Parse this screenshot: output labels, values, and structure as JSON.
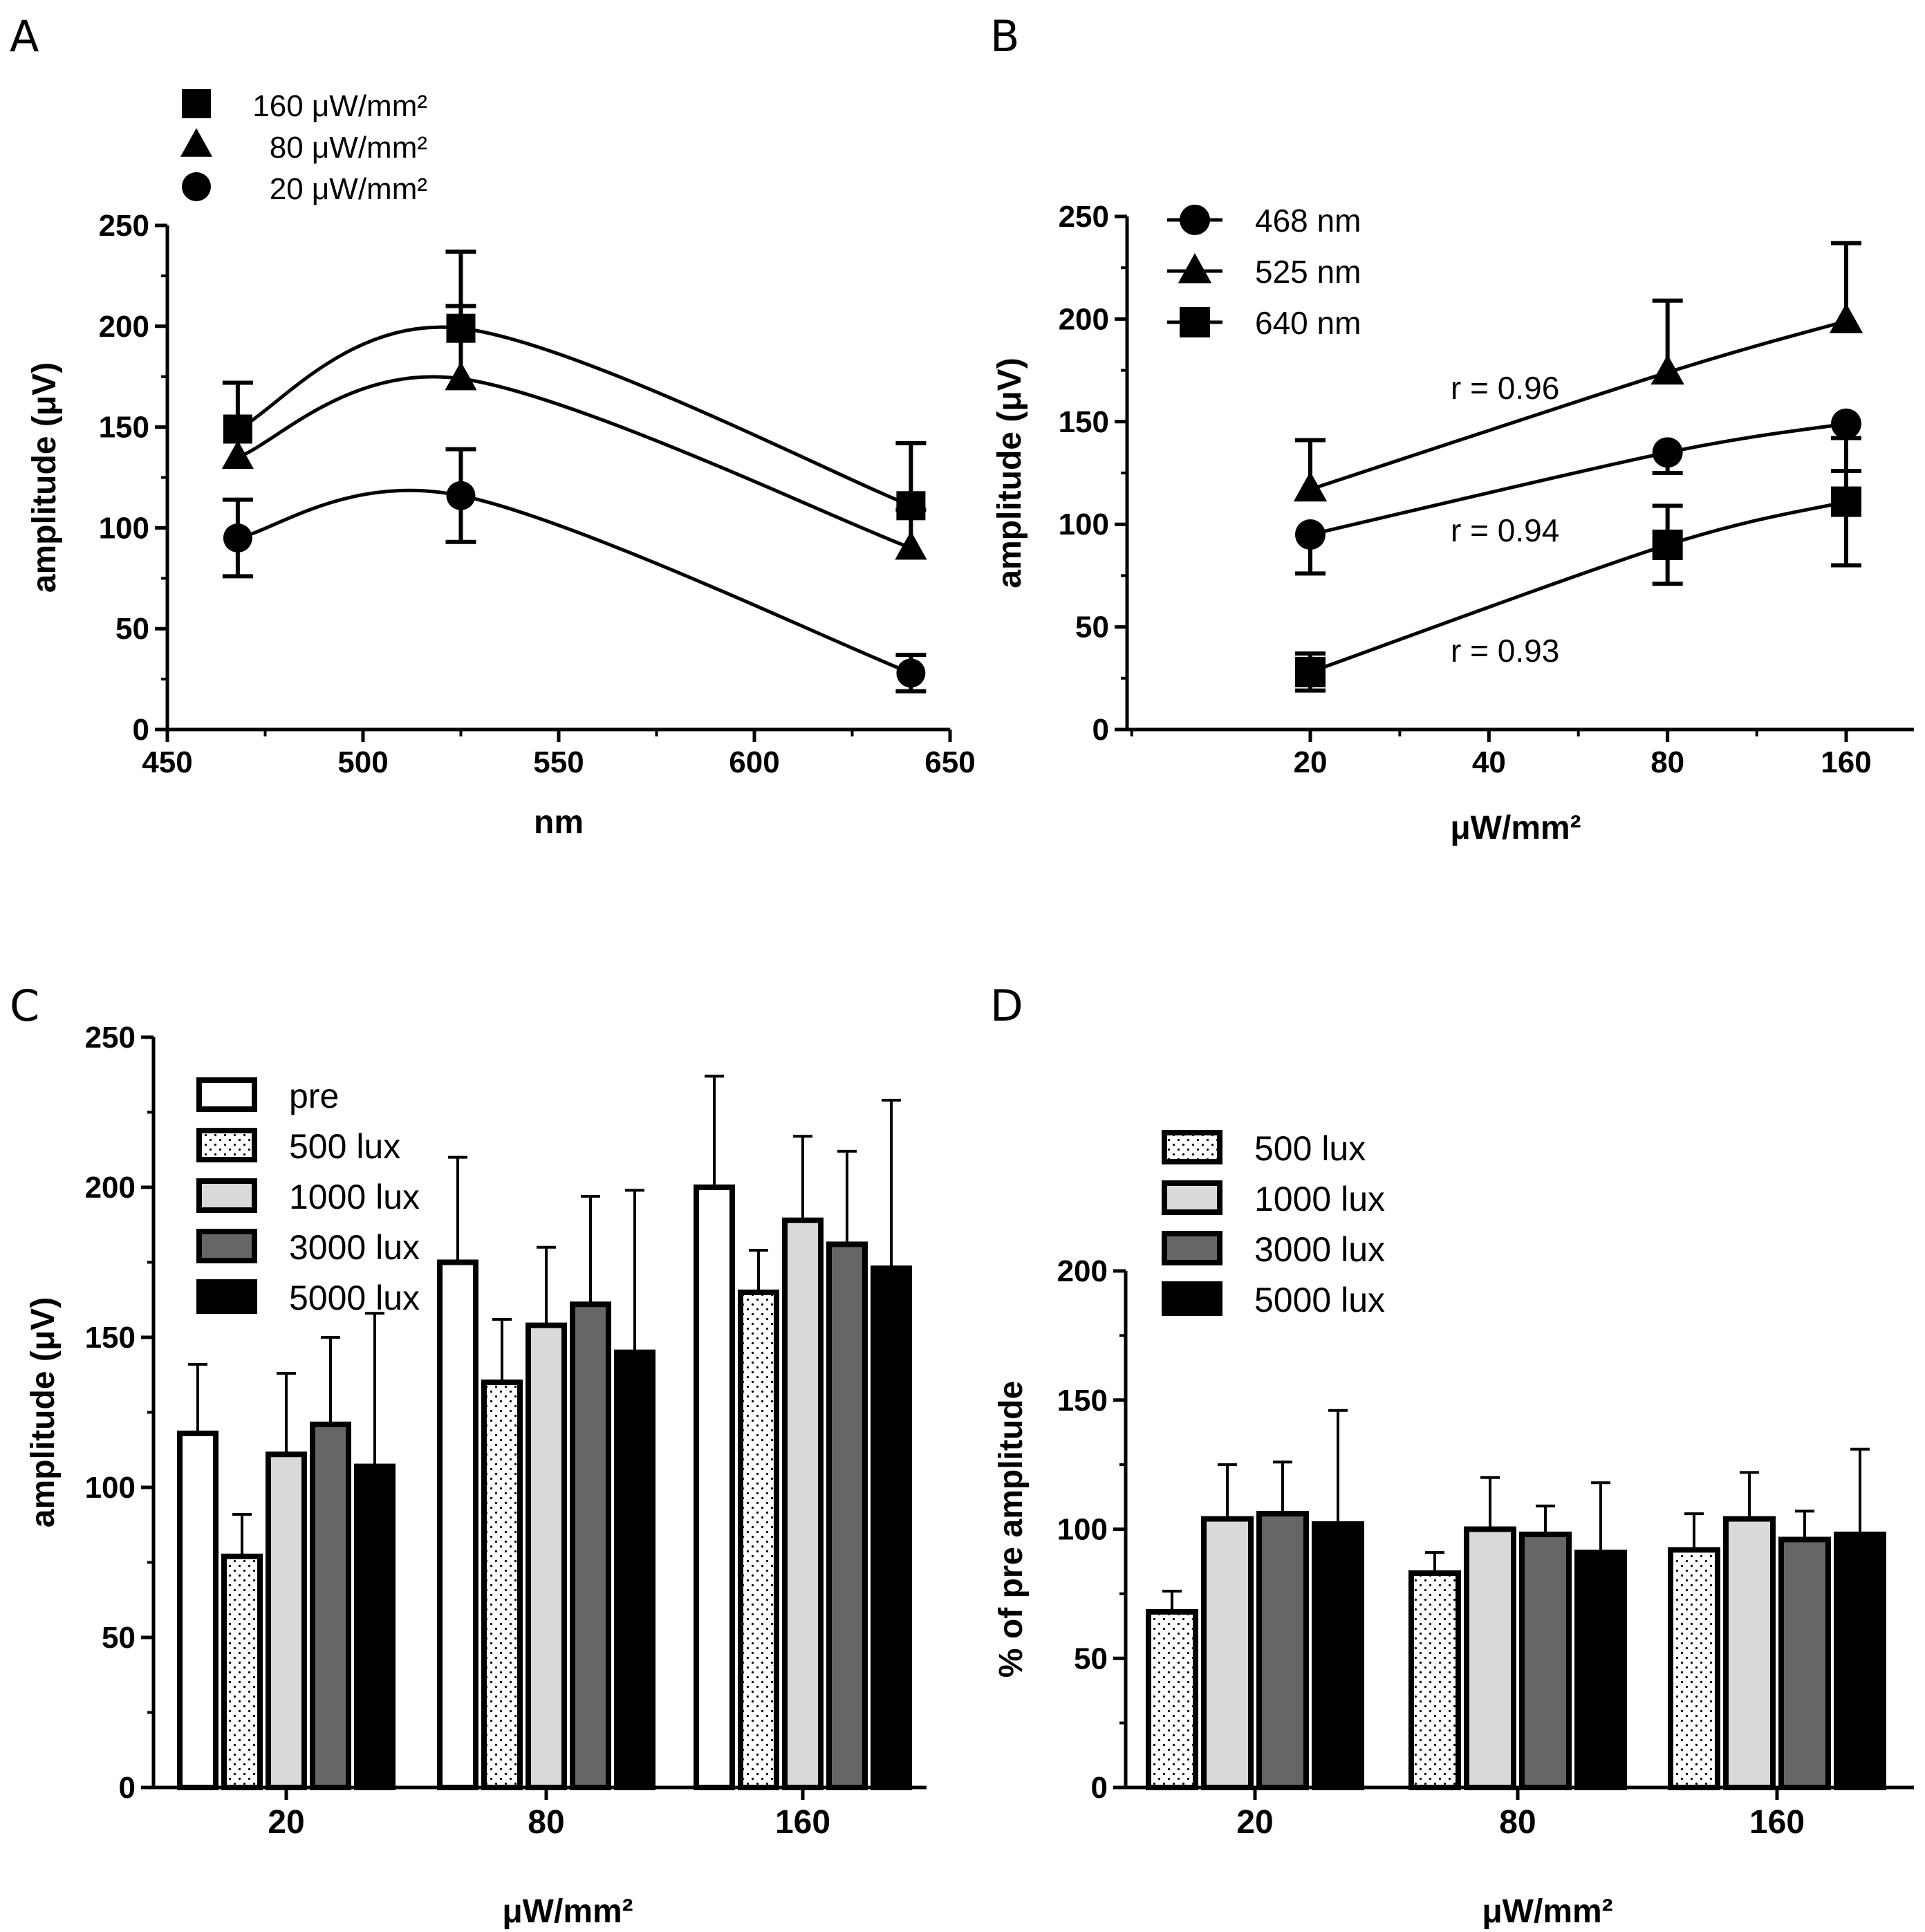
{
  "panels": {
    "A": {
      "label": "A"
    },
    "B": {
      "label": "B"
    },
    "C": {
      "label": "C"
    },
    "D": {
      "label": "D"
    }
  },
  "colors": {
    "pre": "#ffffff",
    "500 lux": "#ffffff",
    "1000 lux": "#d9d9d9",
    "3000 lux": "#666666",
    "5000 lux": "#000000",
    "line": "#000000"
  },
  "chart_data": [
    {
      "panel": "A",
      "type": "line",
      "xlabel": "nm",
      "ylabel": "amplitude (μV)",
      "xlim": [
        450,
        650
      ],
      "ylim": [
        0,
        250
      ],
      "xticks": [
        "450",
        "500",
        "550",
        "600",
        "650"
      ],
      "yticks": [
        "0",
        "50",
        "100",
        "150",
        "200",
        "250"
      ],
      "legend_position": "top-left",
      "x": [
        468,
        525,
        640
      ],
      "series": [
        {
          "name": "160 μW/mm²",
          "marker": "square",
          "values": [
            149,
            199,
            111
          ],
          "err": [
            23,
            38,
            31
          ]
        },
        {
          "name": "80 μW/mm²",
          "marker": "triangle",
          "values": [
            135,
            174,
            90
          ],
          "err": [
            0,
            36,
            19
          ]
        },
        {
          "name": "20 μW/mm²",
          "marker": "circle",
          "values": [
            95,
            116,
            28
          ],
          "err": [
            19,
            23,
            9
          ]
        }
      ]
    },
    {
      "panel": "B",
      "type": "line",
      "xlabel": "μW/mm²",
      "ylabel": "amplitude (μV)",
      "xscale": "log",
      "ylim": [
        0,
        250
      ],
      "xticks": [
        "20",
        "40",
        "80",
        "160"
      ],
      "yticks": [
        "0",
        "50",
        "100",
        "150",
        "200",
        "250"
      ],
      "legend_position": "top-left",
      "x": [
        20,
        80,
        160
      ],
      "series": [
        {
          "name": "468 nm",
          "marker": "circle",
          "values": [
            95,
            135,
            149
          ],
          "err": [
            19,
            10,
            23
          ]
        },
        {
          "name": "525 nm",
          "marker": "triangle",
          "values": [
            117,
            174,
            199
          ],
          "err": [
            24,
            35,
            38
          ]
        },
        {
          "name": "640 nm",
          "marker": "square",
          "values": [
            28,
            90,
            111
          ],
          "err": [
            9,
            19,
            31
          ]
        }
      ],
      "annotations": [
        "r = 0.96",
        "r = 0.94",
        "r = 0.93"
      ]
    },
    {
      "panel": "C",
      "type": "bar",
      "xlabel": "μW/mm²",
      "ylabel": "amplitude (μV)",
      "ylim": [
        0,
        250
      ],
      "yticks": [
        "0",
        "50",
        "100",
        "150",
        "200",
        "250"
      ],
      "categories": [
        "20",
        "80",
        "160"
      ],
      "legend_position": "top-left",
      "series": [
        {
          "name": "pre",
          "values": [
            118,
            175,
            200
          ],
          "err": [
            23,
            35,
            37
          ]
        },
        {
          "name": "500 lux",
          "values": [
            77,
            135,
            165
          ],
          "err": [
            14,
            21,
            14
          ]
        },
        {
          "name": "1000 lux",
          "values": [
            111,
            154,
            189
          ],
          "err": [
            27,
            26,
            28
          ]
        },
        {
          "name": "3000 lux",
          "values": [
            121,
            161,
            181
          ],
          "err": [
            29,
            36,
            31
          ]
        },
        {
          "name": "5000 lux",
          "values": [
            107,
            145,
            173
          ],
          "err": [
            51,
            54,
            56
          ]
        }
      ]
    },
    {
      "panel": "D",
      "type": "bar",
      "xlabel": "μW/mm²",
      "ylabel": "% of pre amplitude",
      "ylim": [
        0,
        200
      ],
      "yticks": [
        "0",
        "50",
        "100",
        "150",
        "200"
      ],
      "categories": [
        "20",
        "80",
        "160"
      ],
      "legend_position": "top-left",
      "series": [
        {
          "name": "500 lux",
          "values": [
            68,
            83,
            92
          ],
          "err": [
            8,
            8,
            14
          ]
        },
        {
          "name": "1000 lux",
          "values": [
            104,
            100,
            104
          ],
          "err": [
            21,
            20,
            18
          ]
        },
        {
          "name": "3000 lux",
          "values": [
            106,
            98,
            96
          ],
          "err": [
            20,
            11,
            11
          ]
        },
        {
          "name": "5000 lux",
          "values": [
            102,
            91,
            98
          ],
          "err": [
            44,
            27,
            33
          ]
        }
      ]
    }
  ]
}
